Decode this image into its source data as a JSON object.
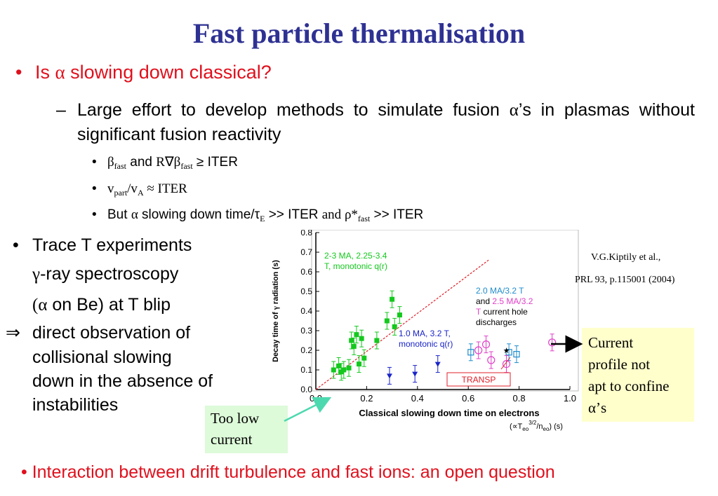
{
  "slide": {
    "title": "Fast particle thermalisation",
    "bullet1": {
      "marker": "•",
      "pre": "Is ",
      "alpha": "α",
      "post": " slowing down classical?"
    },
    "sub1": {
      "dash": "–",
      "pre": "Large effort to develop methods to simulate fusion ",
      "alpha": "α",
      "post": "’s in plasmas without significant fusion reactivity"
    },
    "items": [
      {
        "marker": "•",
        "a": "β",
        "a_sub": "fast",
        "b": " and ",
        "c": "R∇β",
        "c_sub": "fast",
        "d": " ≥ ITER"
      },
      {
        "marker": "•",
        "a": "v",
        "a_sub": "part",
        "b": "/v",
        "b_sub": "A",
        "c": "  ≈ ITER"
      },
      {
        "marker": "•",
        "a": "But ",
        "alpha": "α",
        "b": " slowing down time/τ",
        "b_sub": "E",
        "c": " >> ITER ",
        "d": "and ",
        "e": "ρ*",
        "e_sub": "fast",
        "f": " >> ITER"
      }
    ],
    "left": {
      "marker": "•",
      "line1": "Trace T experiments",
      "line2_sym": "γ",
      "line2": "-ray spectroscopy",
      "line3_open": "(",
      "line3_sym": "α",
      "line3": " on Be) at T blip",
      "arrow": "⇒",
      "line4": "direct observation of",
      "line5": "collisional slowing",
      "line6": "down in the absence of",
      "line7": "instabilities"
    },
    "reference_line1": "V.G.Kiptily  et al.,",
    "reference_line2": "PRL 93, p.115001 (2004)",
    "callout_current": {
      "line1": "Current",
      "line2": "profile not",
      "line3": "apt to confine",
      "line4_sym": "α",
      "line4": "’s"
    },
    "callout_low": {
      "line1": "Too low",
      "line2": "current"
    },
    "bottom": "• Interaction between drift turbulence and fast ions: an open question"
  },
  "chart_data": {
    "type": "scatter",
    "xlabel": "Classical slowing down time on electrons",
    "xlabel2": "(∝T",
    "xlabel2_sub": "eo",
    "xlabel2_sup": "3/2",
    "xlabel2_mid": "/n",
    "xlabel2_sub2": "eo",
    "xlabel2_end": ") (s)",
    "ylabel_pre": "Decay time of ",
    "ylabel_sym": "γ",
    "ylabel_post": " radiation (s)",
    "xlim": [
      0,
      1.0
    ],
    "ylim": [
      0,
      0.8
    ],
    "x_ticks": [
      "0.0",
      "0.2",
      "0.4",
      "0.6",
      "0.8",
      "1.0"
    ],
    "y_ticks": [
      "0.0",
      "0.1",
      "0.2",
      "0.3",
      "0.4",
      "0.5",
      "0.6",
      "0.7",
      "0.8"
    ],
    "annotations": {
      "green_1": "2-3 MA, 2.25-3.4",
      "green_2": "T, monotonic q(r)",
      "hole_1": "2.0 MA/3.2 T",
      "hole_2a": "and ",
      "hole_2b": "2.5 MA/3.2",
      "hole_3a": "T",
      "hole_3b": " current hole",
      "hole_4": "discharges",
      "blue_1": "1.0 MA, 3.2 T,",
      "blue_2": "monotonic q(r)",
      "transp": "TRANSP"
    },
    "colors": {
      "green": "#14c81e",
      "blue": "#1a24c8",
      "cyan": "#1f8ccc",
      "magenta": "#e040c8",
      "red": "#e0202a",
      "black": "#000000"
    },
    "series": [
      {
        "color": "green",
        "marker": "square",
        "points": [
          {
            "x": 0.07,
            "y": 0.1
          },
          {
            "x": 0.09,
            "y": 0.12
          },
          {
            "x": 0.1,
            "y": 0.09
          },
          {
            "x": 0.11,
            "y": 0.1
          },
          {
            "x": 0.13,
            "y": 0.11
          },
          {
            "x": 0.14,
            "y": 0.25
          },
          {
            "x": 0.15,
            "y": 0.22
          },
          {
            "x": 0.16,
            "y": 0.28
          },
          {
            "x": 0.17,
            "y": 0.13
          },
          {
            "x": 0.18,
            "y": 0.26
          },
          {
            "x": 0.19,
            "y": 0.16
          },
          {
            "x": 0.24,
            "y": 0.25
          },
          {
            "x": 0.28,
            "y": 0.35
          },
          {
            "x": 0.3,
            "y": 0.46
          },
          {
            "x": 0.31,
            "y": 0.32
          },
          {
            "x": 0.33,
            "y": 0.38
          }
        ]
      },
      {
        "color": "blue",
        "marker": "triangle-down",
        "points": [
          {
            "x": 0.29,
            "y": 0.07
          },
          {
            "x": 0.39,
            "y": 0.08
          },
          {
            "x": 0.48,
            "y": 0.13
          }
        ]
      },
      {
        "color": "cyan",
        "marker": "open-square",
        "points": [
          {
            "x": 0.61,
            "y": 0.19
          },
          {
            "x": 0.76,
            "y": 0.19
          },
          {
            "x": 0.79,
            "y": 0.18
          }
        ]
      },
      {
        "color": "magenta",
        "marker": "open-circle",
        "points": [
          {
            "x": 0.64,
            "y": 0.2
          },
          {
            "x": 0.67,
            "y": 0.23
          },
          {
            "x": 0.69,
            "y": 0.15
          },
          {
            "x": 0.75,
            "y": 0.13
          },
          {
            "x": 0.93,
            "y": 0.24
          }
        ]
      },
      {
        "color": "black",
        "marker": "star",
        "points": [
          {
            "x": 0.75,
            "y": 0.2
          }
        ]
      }
    ],
    "transp_line": {
      "color": "red",
      "style": "dashed",
      "points": [
        {
          "x": 0.0,
          "y": 0.0
        },
        {
          "x": 0.68,
          "y": 0.66
        }
      ]
    }
  }
}
